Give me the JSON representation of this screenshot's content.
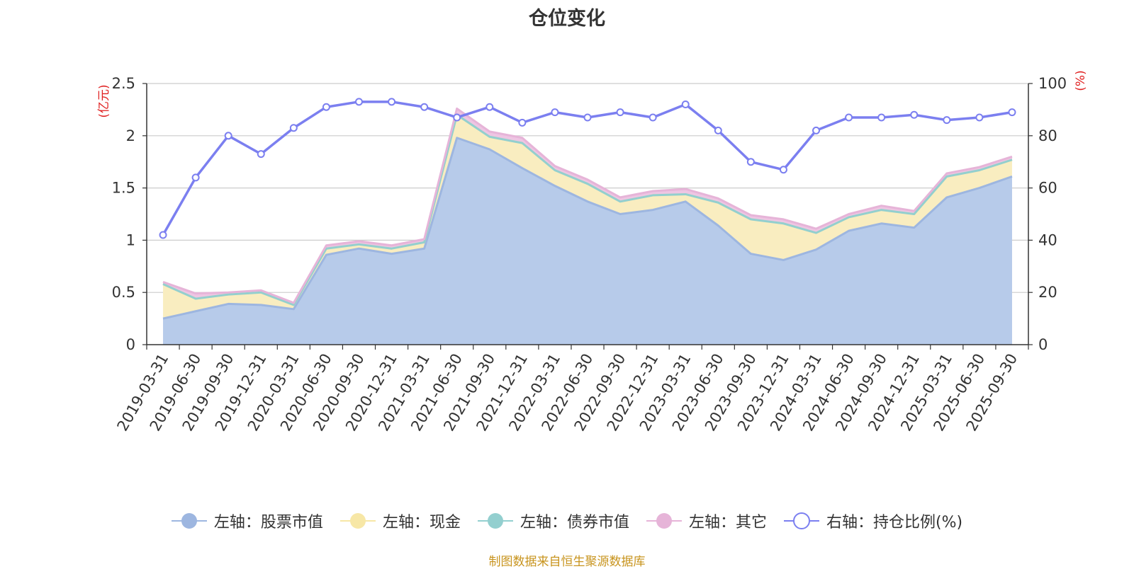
{
  "chart_data": {
    "type": "area",
    "title": "仓位变化",
    "categories": [
      "2019-03-31",
      "2019-06-30",
      "2019-09-30",
      "2019-12-31",
      "2020-03-31",
      "2020-06-30",
      "2020-09-30",
      "2020-12-31",
      "2021-03-31",
      "2021-06-30",
      "2021-09-30",
      "2021-12-31",
      "2022-03-31",
      "2022-06-30",
      "2022-09-30",
      "2022-12-31",
      "2023-03-31",
      "2023-06-30",
      "2023-09-30",
      "2023-12-31",
      "2024-03-31",
      "2024-06-30",
      "2024-09-30",
      "2024-12-31",
      "2025-03-31",
      "2025-06-30",
      "2025-09-30"
    ],
    "left_axis": {
      "label": "(亿元)",
      "ylim": [
        0,
        2.5
      ],
      "ticks": [
        "0",
        "0.5",
        "1",
        "1.5",
        "2",
        "2.5"
      ]
    },
    "right_axis": {
      "label": "(%)",
      "ylim": [
        0,
        100
      ],
      "ticks": [
        "0",
        "20",
        "40",
        "60",
        "80",
        "100"
      ]
    },
    "grid": true,
    "legend_position": "bottom",
    "series": [
      {
        "name": "左轴：股票市值",
        "axis": "left",
        "stacked": true,
        "color": "#9db6e0",
        "fill": "#b7cbea",
        "values": [
          0.25,
          0.32,
          0.39,
          0.38,
          0.34,
          0.86,
          0.92,
          0.87,
          0.92,
          1.98,
          1.87,
          1.69,
          1.52,
          1.37,
          1.25,
          1.29,
          1.37,
          1.14,
          0.87,
          0.81,
          0.91,
          1.09,
          1.16,
          1.12,
          1.41,
          1.5,
          1.61
        ]
      },
      {
        "name": "左轴：现金",
        "axis": "left",
        "stacked": true,
        "color": "#f7e7a6",
        "fill": "#f9edc0",
        "values": [
          0.33,
          0.12,
          0.09,
          0.12,
          0.04,
          0.06,
          0.04,
          0.05,
          0.06,
          0.22,
          0.12,
          0.24,
          0.15,
          0.17,
          0.12,
          0.14,
          0.07,
          0.22,
          0.33,
          0.35,
          0.16,
          0.13,
          0.13,
          0.13,
          0.2,
          0.17,
          0.16
        ]
      },
      {
        "name": "左轴：债券市值",
        "axis": "left",
        "stacked": true,
        "color": "#93cfcf",
        "fill": "#93cfcf",
        "values": [
          0,
          0,
          0,
          0,
          0,
          0,
          0,
          0,
          0,
          0,
          0,
          0,
          0,
          0,
          0,
          0,
          0,
          0,
          0,
          0,
          0,
          0,
          0,
          0,
          0,
          0,
          0
        ]
      },
      {
        "name": "左轴：其它",
        "axis": "left",
        "stacked": true,
        "color": "#e6b4d8",
        "fill": "#eec5e3",
        "values": [
          0.02,
          0.05,
          0.02,
          0.02,
          0.02,
          0.03,
          0.03,
          0.03,
          0.03,
          0.06,
          0.05,
          0.05,
          0.04,
          0.04,
          0.04,
          0.04,
          0.05,
          0.04,
          0.04,
          0.04,
          0.04,
          0.03,
          0.04,
          0.03,
          0.03,
          0.03,
          0.03
        ]
      },
      {
        "name": "右轴：持仓比例(%)",
        "axis": "right",
        "stacked": false,
        "color": "#7b7ff0",
        "values": [
          42,
          64,
          80,
          73,
          83,
          91,
          93,
          93,
          91,
          87,
          91,
          85,
          89,
          87,
          89,
          87,
          92,
          82,
          70,
          67,
          82,
          87,
          87,
          88,
          86,
          87,
          89
        ]
      }
    ]
  },
  "source_note": "制图数据来自恒生聚源数据库"
}
